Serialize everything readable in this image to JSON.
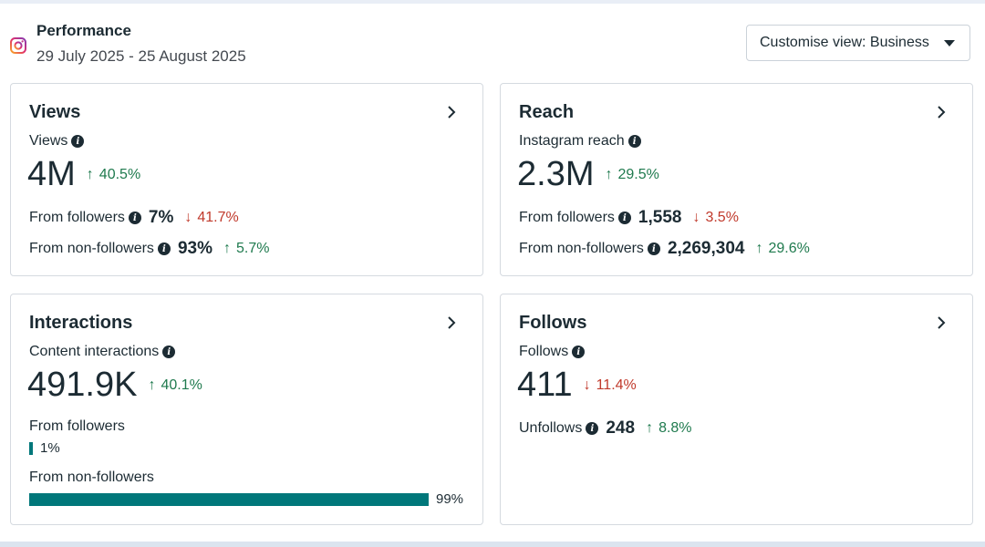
{
  "header": {
    "title": "Performance",
    "date_range": "29 July 2025 - 25 August 2025",
    "customise_label": "Customise view: Business"
  },
  "icons": {
    "instagram": "instagram-icon",
    "chevron": "chevron-right-icon",
    "info": "info-icon",
    "up": "arrow-up-icon",
    "down": "arrow-down-icon"
  },
  "colors": {
    "positive": "#1f7a4e",
    "negative": "#c0392b",
    "bar": "#00777a"
  },
  "views": {
    "title": "Views",
    "metric_label": "Views",
    "value": "4M",
    "change": "40.5%",
    "from_followers_label": "From followers",
    "from_followers_value": "7%",
    "from_followers_change": "41.7%",
    "from_non_followers_label": "From non-followers",
    "from_non_followers_value": "93%",
    "from_non_followers_change": "5.7%"
  },
  "reach": {
    "title": "Reach",
    "metric_label": "Instagram reach",
    "value": "2.3M",
    "change": "29.5%",
    "from_followers_label": "From followers",
    "from_followers_value": "1,558",
    "from_followers_change": "3.5%",
    "from_non_followers_label": "From non-followers",
    "from_non_followers_value": "2,269,304",
    "from_non_followers_change": "29.6%"
  },
  "interactions": {
    "title": "Interactions",
    "metric_label": "Content interactions",
    "value": "491.9K",
    "change": "40.1%",
    "from_followers_label": "From followers",
    "from_followers_pct": "1%",
    "from_followers_fraction": 0.01,
    "from_non_followers_label": "From non-followers",
    "from_non_followers_pct": "99%",
    "from_non_followers_fraction": 0.99
  },
  "follows": {
    "title": "Follows",
    "metric_label": "Follows",
    "value": "411",
    "change": "11.4%",
    "unfollows_label": "Unfollows",
    "unfollows_value": "248",
    "unfollows_change": "8.8%"
  }
}
